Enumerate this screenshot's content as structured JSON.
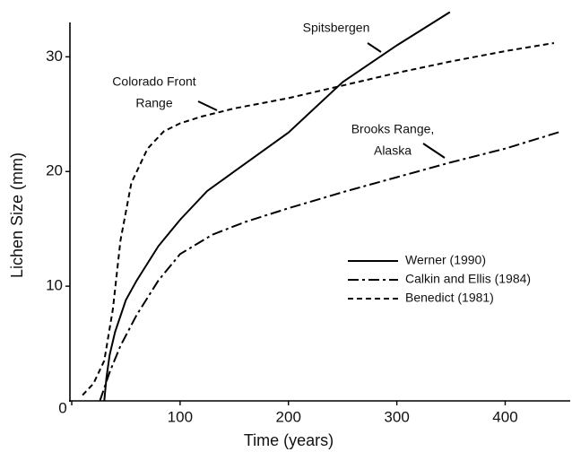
{
  "chart_data": {
    "type": "line",
    "xlabel": "Time (years)",
    "ylabel": "Lichen Size (mm)",
    "xlim": [
      0,
      460
    ],
    "ylim": [
      0,
      33
    ],
    "xticks": [
      0,
      100,
      200,
      300,
      400
    ],
    "yticks": [
      10,
      20,
      30
    ],
    "grid": false,
    "legend": "lower right",
    "series": [
      {
        "name": "Werner (1990)",
        "color": "#000000",
        "style": "solid",
        "x": [
          30,
          32,
          35,
          40,
          50,
          60,
          80,
          100,
          125,
          150,
          200,
          250,
          300,
          349
        ],
        "values": [
          0,
          2,
          4,
          6,
          8.8,
          10.5,
          13.5,
          15.8,
          18.3,
          20,
          23.4,
          27.8,
          31,
          33.9
        ]
      },
      {
        "name": "Calkin and Ellis (1984)",
        "color": "#000000",
        "style": "dashdot",
        "x": [
          26,
          35,
          45,
          60,
          80,
          100,
          130,
          160,
          200,
          250,
          300,
          350,
          400,
          452
        ],
        "values": [
          0,
          2.5,
          4.8,
          7.5,
          10.5,
          12.8,
          14.5,
          15.6,
          16.8,
          18.2,
          19.5,
          20.8,
          22,
          23.5
        ]
      },
      {
        "name": "Benedict (1981)",
        "color": "#000000",
        "style": "dashed",
        "x": [
          10,
          20,
          30,
          38,
          45,
          55,
          70,
          85,
          100,
          120,
          150,
          200,
          241,
          300,
          350,
          400,
          445
        ],
        "values": [
          0.5,
          1.5,
          3.5,
          8,
          14,
          19,
          22,
          23.5,
          24.2,
          24.8,
          25.5,
          26.4,
          27.3,
          28.6,
          29.6,
          30.5,
          31.2
        ]
      }
    ],
    "annotations": [
      {
        "lines": [
          "Spitsbergen"
        ]
      },
      {
        "lines": [
          "Colorado Front",
          "Range"
        ]
      },
      {
        "lines": [
          "Brooks Range,",
          "Alaska"
        ]
      }
    ]
  }
}
